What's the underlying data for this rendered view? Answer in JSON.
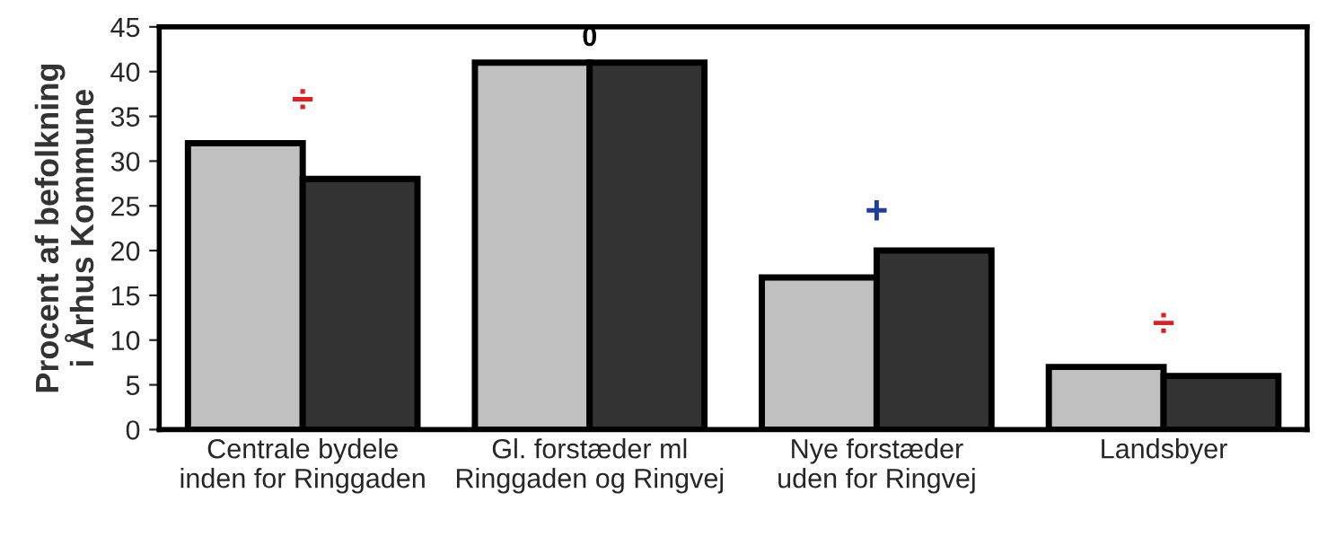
{
  "chart_data": {
    "type": "bar",
    "ylabel": "Procent af befolkning\ni Århus Kommune",
    "categories": [
      "Centrale bydele\ninden for Ringgaden",
      "Gl. forstæder ml\nRinggaden og Ringvej",
      "Nye forstæder\nuden for Ringvej",
      "Landsbyer"
    ],
    "series": [
      {
        "color": "#c0c0c0",
        "values": [
          32,
          41,
          17,
          7
        ]
      },
      {
        "color": "#333333",
        "values": [
          28,
          41,
          20,
          6
        ]
      }
    ],
    "ylim": [
      0,
      45
    ],
    "yticks": [
      0,
      5,
      10,
      15,
      20,
      25,
      30,
      35,
      40,
      45
    ],
    "grid": false,
    "legend": false,
    "annotations": [
      "÷",
      "0",
      "+",
      "÷"
    ]
  }
}
